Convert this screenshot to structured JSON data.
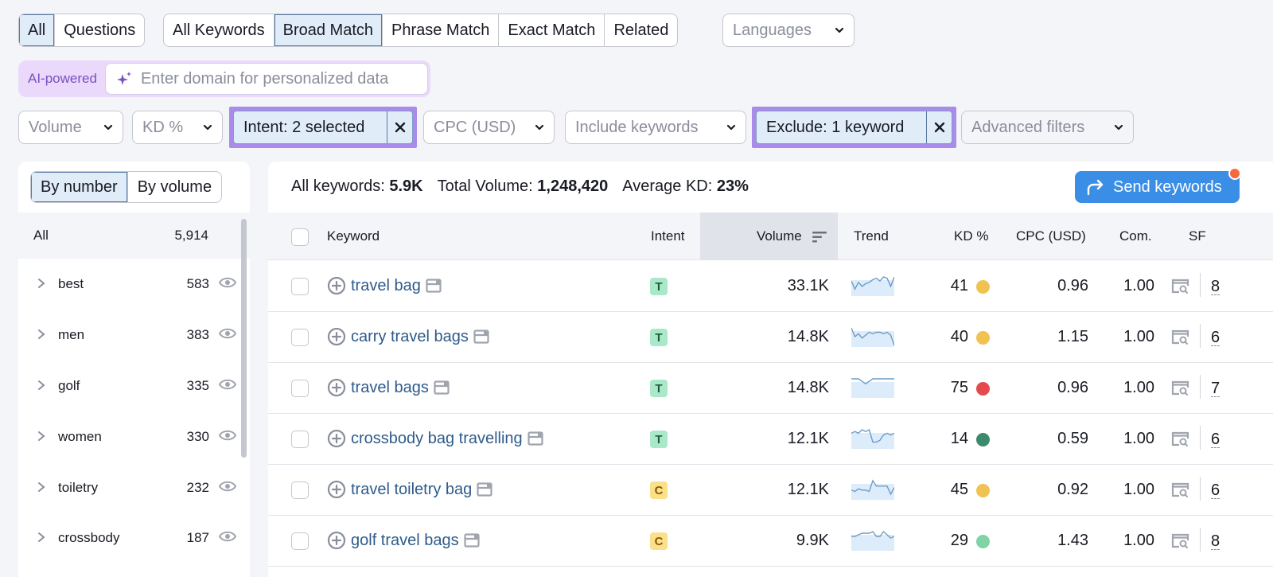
{
  "top_tabs": {
    "group1": [
      {
        "label": "All",
        "active": true
      },
      {
        "label": "Questions",
        "active": false
      }
    ],
    "group2": [
      {
        "label": "All Keywords",
        "active": false
      },
      {
        "label": "Broad Match",
        "active": true
      },
      {
        "label": "Phrase Match",
        "active": false
      },
      {
        "label": "Exact Match",
        "active": false
      },
      {
        "label": "Related",
        "active": false
      }
    ],
    "languages_label": "Languages"
  },
  "ai": {
    "badge": "AI-powered",
    "placeholder": "Enter domain for personalized data",
    "value": ""
  },
  "filters": {
    "volume": "Volume",
    "kd": "KD %",
    "intent": "Intent: 2 selected",
    "cpc": "CPC (USD)",
    "include": "Include keywords",
    "exclude": "Exclude: 1 keyword",
    "advanced": "Advanced filters"
  },
  "left_panel": {
    "tabs": [
      {
        "label": "By number",
        "active": true
      },
      {
        "label": "By volume",
        "active": false
      }
    ],
    "all_label": "All",
    "all_count": "5,914",
    "groups": [
      {
        "name": "best",
        "count": "583"
      },
      {
        "name": "men",
        "count": "383"
      },
      {
        "name": "golf",
        "count": "335"
      },
      {
        "name": "women",
        "count": "330"
      },
      {
        "name": "toiletry",
        "count": "232"
      },
      {
        "name": "crossbody",
        "count": "187"
      }
    ]
  },
  "summary": {
    "all_keywords_label": "All keywords:",
    "all_keywords_value": "5.9K",
    "total_volume_label": "Total Volume:",
    "total_volume_value": "1,248,420",
    "avg_kd_label": "Average KD:",
    "avg_kd_value": "23%"
  },
  "send_button": "Send keywords",
  "colors": {
    "accent_blue": "#3a8ee6",
    "highlight_purple": "#a98bea",
    "notification_dot": "#f36a3c",
    "intent_T_bg": "#a9e8c9",
    "intent_C_bg": "#fbe08c",
    "kd_yellow": "#f0c24f",
    "kd_red": "#e5484d",
    "kd_dark_green": "#3c8a6e",
    "kd_light_green": "#7fd3a5"
  },
  "table": {
    "headers": {
      "keyword": "Keyword",
      "intent": "Intent",
      "volume": "Volume",
      "trend": "Trend",
      "kd": "KD %",
      "cpc": "CPC (USD)",
      "com": "Com.",
      "sf": "SF"
    },
    "rows": [
      {
        "keyword": "travel bag",
        "intent": "T",
        "volume": "33.1K",
        "kd": "41",
        "kd_color": "#f0c24f",
        "cpc": "0.96",
        "com": "1.00",
        "sf": "8",
        "trend": [
          10,
          4,
          9,
          6,
          8,
          9,
          11,
          12,
          10,
          13,
          12,
          6,
          13
        ]
      },
      {
        "keyword": "carry travel bags",
        "intent": "T",
        "volume": "14.8K",
        "kd": "40",
        "kd_color": "#f0c24f",
        "cpc": "1.15",
        "com": "1.00",
        "sf": "6",
        "trend": [
          12,
          6,
          8,
          5,
          7,
          9,
          8,
          9,
          9,
          8,
          9,
          7,
          0
        ]
      },
      {
        "keyword": "travel bags",
        "intent": "T",
        "volume": "14.8K",
        "kd": "75",
        "kd_color": "#e5484d",
        "cpc": "0.96",
        "com": "1.00",
        "sf": "7",
        "trend": [
          7,
          7,
          7,
          6,
          5,
          6,
          7,
          7,
          7,
          7,
          7,
          7,
          7
        ]
      },
      {
        "keyword": "crossbody bag travelling",
        "intent": "T",
        "volume": "12.1K",
        "kd": "14",
        "kd_color": "#3c8a6e",
        "cpc": "0.59",
        "com": "1.00",
        "sf": "6",
        "trend": [
          8,
          9,
          8,
          10,
          9,
          10,
          3,
          3,
          4,
          7,
          8,
          7,
          8
        ]
      },
      {
        "keyword": "travel toiletry bag",
        "intent": "C",
        "volume": "12.1K",
        "kd": "45",
        "kd_color": "#f0c24f",
        "cpc": "0.92",
        "com": "1.00",
        "sf": "6",
        "trend": [
          6,
          5,
          7,
          6,
          6,
          5,
          13,
          9,
          9,
          9,
          9,
          3,
          8
        ]
      },
      {
        "keyword": "golf travel bags",
        "intent": "C",
        "volume": "9.9K",
        "kd": "29",
        "kd_color": "#7fd3a5",
        "cpc": "1.43",
        "com": "1.00",
        "sf": "8",
        "trend": [
          8,
          8,
          9,
          10,
          10,
          10,
          11,
          8,
          8,
          11,
          9,
          7,
          8
        ]
      }
    ]
  }
}
